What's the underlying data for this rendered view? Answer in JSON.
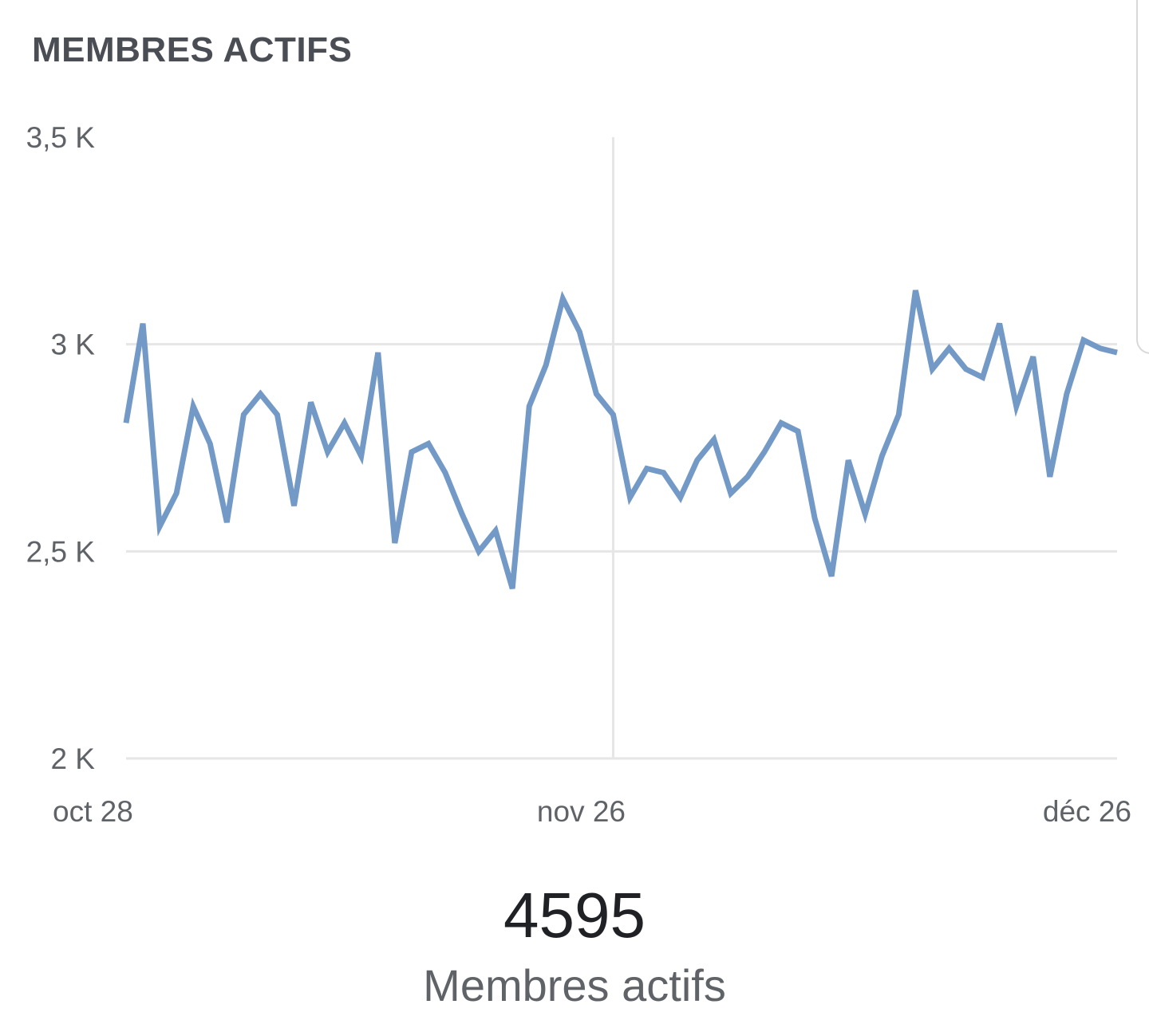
{
  "card": {
    "title": "MEMBRES ACTIFS"
  },
  "chart_data": {
    "type": "line",
    "title": "MEMBRES ACTIFS",
    "xlabel": "",
    "ylabel": "",
    "ylim": [
      2000,
      3500
    ],
    "y_ticks": [
      {
        "value": 3500,
        "label": "3,5 K"
      },
      {
        "value": 3000,
        "label": "3 K"
      },
      {
        "value": 2500,
        "label": "2,5 K"
      },
      {
        "value": 2000,
        "label": "2 K"
      }
    ],
    "x_ticks": [
      {
        "value": "2019-10-28",
        "label": "oct 28"
      },
      {
        "value": "2019-11-26",
        "label": "nov 26"
      },
      {
        "value": "2019-12-26",
        "label": "déc 26"
      }
    ],
    "x": [
      "2019-10-28",
      "2019-10-29",
      "2019-10-30",
      "2019-10-31",
      "2019-11-01",
      "2019-11-02",
      "2019-11-03",
      "2019-11-04",
      "2019-11-05",
      "2019-11-06",
      "2019-11-07",
      "2019-11-08",
      "2019-11-09",
      "2019-11-10",
      "2019-11-11",
      "2019-11-12",
      "2019-11-13",
      "2019-11-14",
      "2019-11-15",
      "2019-11-16",
      "2019-11-17",
      "2019-11-18",
      "2019-11-19",
      "2019-11-20",
      "2019-11-21",
      "2019-11-22",
      "2019-11-23",
      "2019-11-24",
      "2019-11-25",
      "2019-11-26",
      "2019-11-27",
      "2019-11-28",
      "2019-11-29",
      "2019-11-30",
      "2019-12-01",
      "2019-12-02",
      "2019-12-03",
      "2019-12-04",
      "2019-12-05",
      "2019-12-06",
      "2019-12-07",
      "2019-12-08",
      "2019-12-09",
      "2019-12-10",
      "2019-12-11",
      "2019-12-12",
      "2019-12-13",
      "2019-12-14",
      "2019-12-15",
      "2019-12-16",
      "2019-12-17",
      "2019-12-18",
      "2019-12-19",
      "2019-12-20",
      "2019-12-21",
      "2019-12-22",
      "2019-12-23",
      "2019-12-24",
      "2019-12-25",
      "2019-12-26"
    ],
    "series": [
      {
        "color": "#7399c6",
        "values": [
          2810,
          3050,
          2560,
          2640,
          2850,
          2760,
          2570,
          2830,
          2880,
          2830,
          2610,
          2860,
          2740,
          2810,
          2730,
          2980,
          2520,
          2740,
          2760,
          2690,
          2590,
          2500,
          2550,
          2410,
          2850,
          2950,
          3110,
          3030,
          2880,
          2830,
          2630,
          2700,
          2690,
          2630,
          2720,
          2770,
          2640,
          2680,
          2740,
          2810,
          2790,
          2580,
          2440,
          2720,
          2590,
          2730,
          2830,
          3130,
          2940,
          2990,
          2940,
          2920,
          3050,
          2850,
          2970,
          2680,
          2880,
          3010,
          2990,
          2980
        ]
      }
    ],
    "grid": {
      "horizontal": true,
      "vertical_at": [
        "2019-11-26"
      ]
    },
    "legend": "none"
  },
  "summary": {
    "value": "4595",
    "label": "Membres actifs"
  }
}
